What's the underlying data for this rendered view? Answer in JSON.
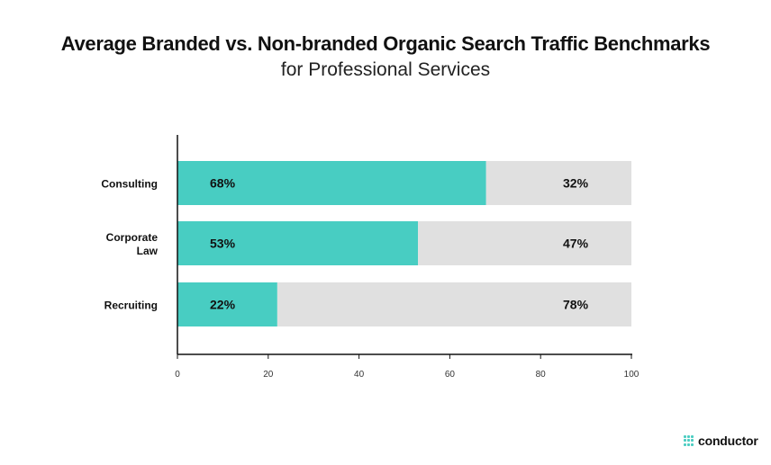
{
  "header": {
    "title": "Average Branded vs. Non-branded Organic Search Traffic Benchmarks",
    "subtitle": "for Professional Services"
  },
  "colors": {
    "branded": "#48cdc2",
    "nonbranded": "#e0e0e0",
    "axis": "#111111"
  },
  "chart_data": {
    "type": "bar",
    "orientation": "horizontal",
    "stacked": true,
    "categories": [
      [
        "Consulting"
      ],
      [
        "Corporate",
        "Law"
      ],
      [
        "Recruiting"
      ]
    ],
    "series": [
      {
        "values": [
          68,
          53,
          22
        ],
        "labels": [
          "68%",
          "53%",
          "22%"
        ]
      },
      {
        "values": [
          32,
          47,
          78
        ],
        "labels": [
          "32%",
          "47%",
          "78%"
        ]
      }
    ],
    "xlim": [
      0,
      100
    ],
    "xticks": [
      0,
      20,
      40,
      60,
      80,
      100
    ],
    "grid": false
  },
  "brand": {
    "name": "conductor"
  }
}
